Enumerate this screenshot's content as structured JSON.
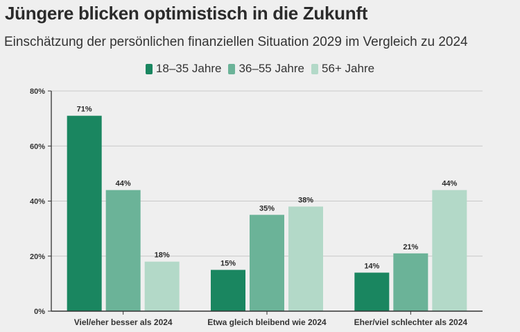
{
  "chart_data": {
    "type": "bar",
    "title": "Jüngere blicken optimistisch in die Zukunft",
    "subtitle": "Einschätzung der persönlichen finanziellen Situation 2029 im Vergleich zu 2024",
    "categories": [
      "Viel/eher besser als 2024",
      "Etwa gleich bleibend wie 2024",
      "Eher/viel schlechter als 2024"
    ],
    "series": [
      {
        "name": "18–35 Jahre",
        "color": "#1a8660",
        "values": [
          71,
          15,
          14
        ]
      },
      {
        "name": "36–55 Jahre",
        "color": "#6bb398",
        "values": [
          44,
          35,
          21
        ]
      },
      {
        "name": "56+ Jahre",
        "color": "#b3d9c8",
        "values": [
          18,
          38,
          44
        ]
      }
    ],
    "ylim": [
      0,
      80
    ],
    "yticks": [
      0,
      20,
      40,
      60,
      80
    ],
    "ytick_labels": [
      "0%",
      "20%",
      "40%",
      "60%",
      "80%"
    ],
    "value_suffix": "%",
    "xlabel": "",
    "ylabel": "",
    "grid": true,
    "legend_position": "top-center"
  }
}
